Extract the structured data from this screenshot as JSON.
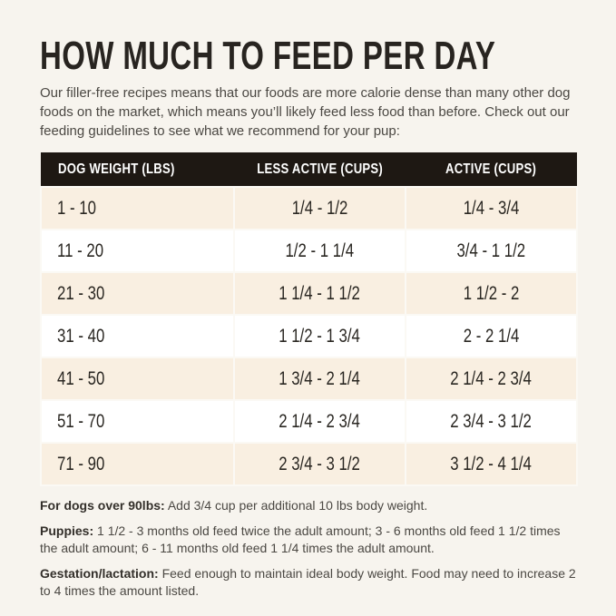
{
  "page": {
    "title": "HOW MUCH TO FEED PER DAY",
    "intro": "Our filler-free recipes means that our foods are more calorie dense than many other dog foods on the market, which means you’ll likely feed less food than before. Check out our feeding guidelines to see what we recommend for your pup:"
  },
  "colors": {
    "page_bg": "#f7f4ee",
    "header_bg": "#1e1813",
    "header_text": "#ffffff",
    "row_cream": "#f9efe1",
    "row_white": "#ffffff",
    "grid_line": "#fbf9f4",
    "title_text": "#282420",
    "body_text": "#4b4843",
    "cell_text": "#2a2722"
  },
  "table": {
    "columns": [
      "DOG WEIGHT (LBS)",
      "LESS ACTIVE (CUPS)",
      "ACTIVE (CUPS)"
    ],
    "rows": [
      [
        "1 - 10",
        "1/4 - 1/2",
        "1/4 - 3/4"
      ],
      [
        "11 - 20",
        "1/2 - 1 1/4",
        "3/4 - 1 1/2"
      ],
      [
        "21 - 30",
        "1 1/4 - 1 1/2",
        "1 1/2 - 2"
      ],
      [
        "31 - 40",
        "1 1/2 - 1 3/4",
        "2 - 2 1/4"
      ],
      [
        "41 - 50",
        "1 3/4 - 2 1/4",
        "2 1/4 - 2 3/4"
      ],
      [
        "51 - 70",
        "2 1/4 - 2 3/4",
        "2 3/4 - 3 1/2"
      ],
      [
        "71 - 90",
        "2 3/4 - 3 1/2",
        "3 1/2 - 4 1/4"
      ]
    ]
  },
  "notes": [
    {
      "label": "For dogs over 90lbs:",
      "text": "Add 3/4 cup per additional 10 lbs body weight."
    },
    {
      "label": "Puppies:",
      "text": "1 1/2 - 3 months old feed twice the adult amount; 3 - 6 months old feed 1 1/2 times the adult amount; 6 - 11 months old feed 1 1/4 times the adult amount."
    },
    {
      "label": "Gestation/lactation:",
      "text": "Feed enough to maintain ideal body weight. Food may need to increase 2 to 4 times the amount listed."
    }
  ]
}
